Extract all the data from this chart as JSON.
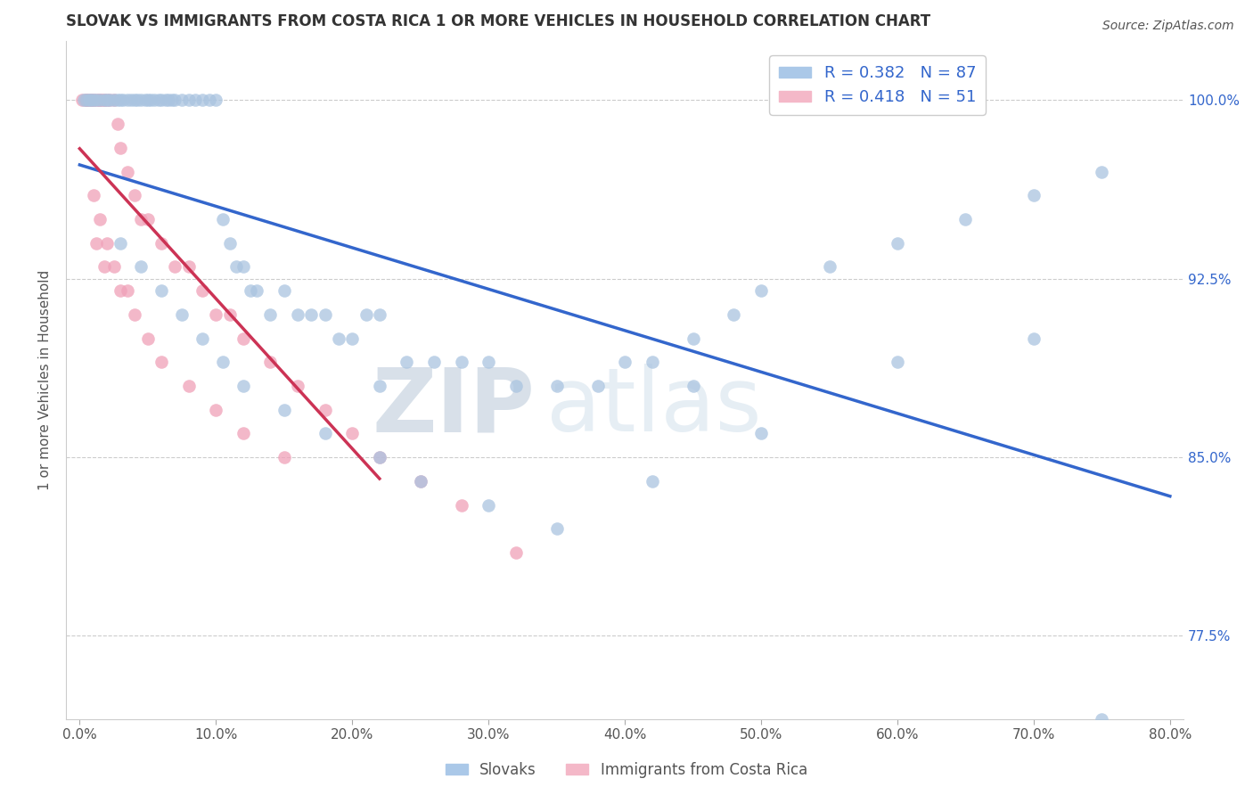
{
  "title": "SLOVAK VS IMMIGRANTS FROM COSTA RICA 1 OR MORE VEHICLES IN HOUSEHOLD CORRELATION CHART",
  "source_text": "Source: ZipAtlas.com",
  "ylabel": "1 or more Vehicles in Household",
  "xlim": [
    -1.0,
    81.0
  ],
  "ylim": [
    74.0,
    102.5
  ],
  "ytick_vals": [
    77.5,
    85.0,
    92.5,
    100.0
  ],
  "xtick_vals": [
    0,
    10,
    20,
    30,
    40,
    50,
    60,
    70,
    80
  ],
  "blue_scatter_color": "#aac4e0",
  "pink_scatter_color": "#f0a0b8",
  "blue_line_color": "#3366cc",
  "pink_line_color": "#cc3355",
  "legend_blue_label": "R = 0.382   N = 87",
  "legend_pink_label": "R = 0.418   N = 51",
  "bottom_legend_slovaks": "Slovaks",
  "bottom_legend_immigrants": "Immigrants from Costa Rica",
  "watermark_zip": "ZIP",
  "watermark_atlas": "atlas",
  "blue_x": [
    0.3,
    0.5,
    0.7,
    0.8,
    1.0,
    1.2,
    1.5,
    1.8,
    2.0,
    2.2,
    2.5,
    2.8,
    3.0,
    3.2,
    3.5,
    3.8,
    4.0,
    4.2,
    4.5,
    4.8,
    5.0,
    5.2,
    5.5,
    5.8,
    6.0,
    6.3,
    6.5,
    6.8,
    7.0,
    7.5,
    8.0,
    8.5,
    9.0,
    9.5,
    10.0,
    10.5,
    11.0,
    11.5,
    12.0,
    12.5,
    13.0,
    14.0,
    15.0,
    16.0,
    17.0,
    18.0,
    19.0,
    20.0,
    21.0,
    22.0,
    24.0,
    26.0,
    28.0,
    30.0,
    32.0,
    35.0,
    38.0,
    40.0,
    42.0,
    45.0,
    48.0,
    50.0,
    55.0,
    60.0,
    65.0,
    70.0,
    75.0,
    3.0,
    4.5,
    6.0,
    7.5,
    9.0,
    10.5,
    12.0,
    15.0,
    18.0,
    22.0,
    25.0,
    30.0,
    35.0,
    42.0,
    50.0,
    60.0,
    70.0,
    75.0,
    45.0,
    22.0
  ],
  "blue_y": [
    100,
    100,
    100,
    100,
    100,
    100,
    100,
    100,
    100,
    100,
    100,
    100,
    100,
    100,
    100,
    100,
    100,
    100,
    100,
    100,
    100,
    100,
    100,
    100,
    100,
    100,
    100,
    100,
    100,
    100,
    100,
    100,
    100,
    100,
    100,
    95,
    94,
    93,
    93,
    92,
    92,
    91,
    92,
    91,
    91,
    91,
    90,
    90,
    91,
    91,
    89,
    89,
    89,
    89,
    88,
    88,
    88,
    89,
    89,
    90,
    91,
    92,
    93,
    94,
    95,
    96,
    97,
    94,
    93,
    92,
    91,
    90,
    89,
    88,
    87,
    86,
    85,
    84,
    83,
    82,
    84,
    86,
    89,
    90,
    74,
    88,
    88
  ],
  "pink_x": [
    0.2,
    0.4,
    0.5,
    0.6,
    0.8,
    0.9,
    1.0,
    1.2,
    1.4,
    1.5,
    1.7,
    1.8,
    2.0,
    2.2,
    2.5,
    2.8,
    3.0,
    3.5,
    4.0,
    4.5,
    5.0,
    6.0,
    7.0,
    8.0,
    9.0,
    10.0,
    11.0,
    12.0,
    14.0,
    16.0,
    18.0,
    20.0,
    22.0,
    25.0,
    28.0,
    32.0,
    1.0,
    1.5,
    2.0,
    2.5,
    3.0,
    4.0,
    5.0,
    6.0,
    8.0,
    10.0,
    12.0,
    15.0,
    1.2,
    1.8,
    3.5
  ],
  "pink_y": [
    100,
    100,
    100,
    100,
    100,
    100,
    100,
    100,
    100,
    100,
    100,
    100,
    100,
    100,
    100,
    99,
    98,
    97,
    96,
    95,
    95,
    94,
    93,
    93,
    92,
    91,
    91,
    90,
    89,
    88,
    87,
    86,
    85,
    84,
    83,
    81,
    96,
    95,
    94,
    93,
    92,
    91,
    90,
    89,
    88,
    87,
    86,
    85,
    94,
    93,
    92
  ]
}
